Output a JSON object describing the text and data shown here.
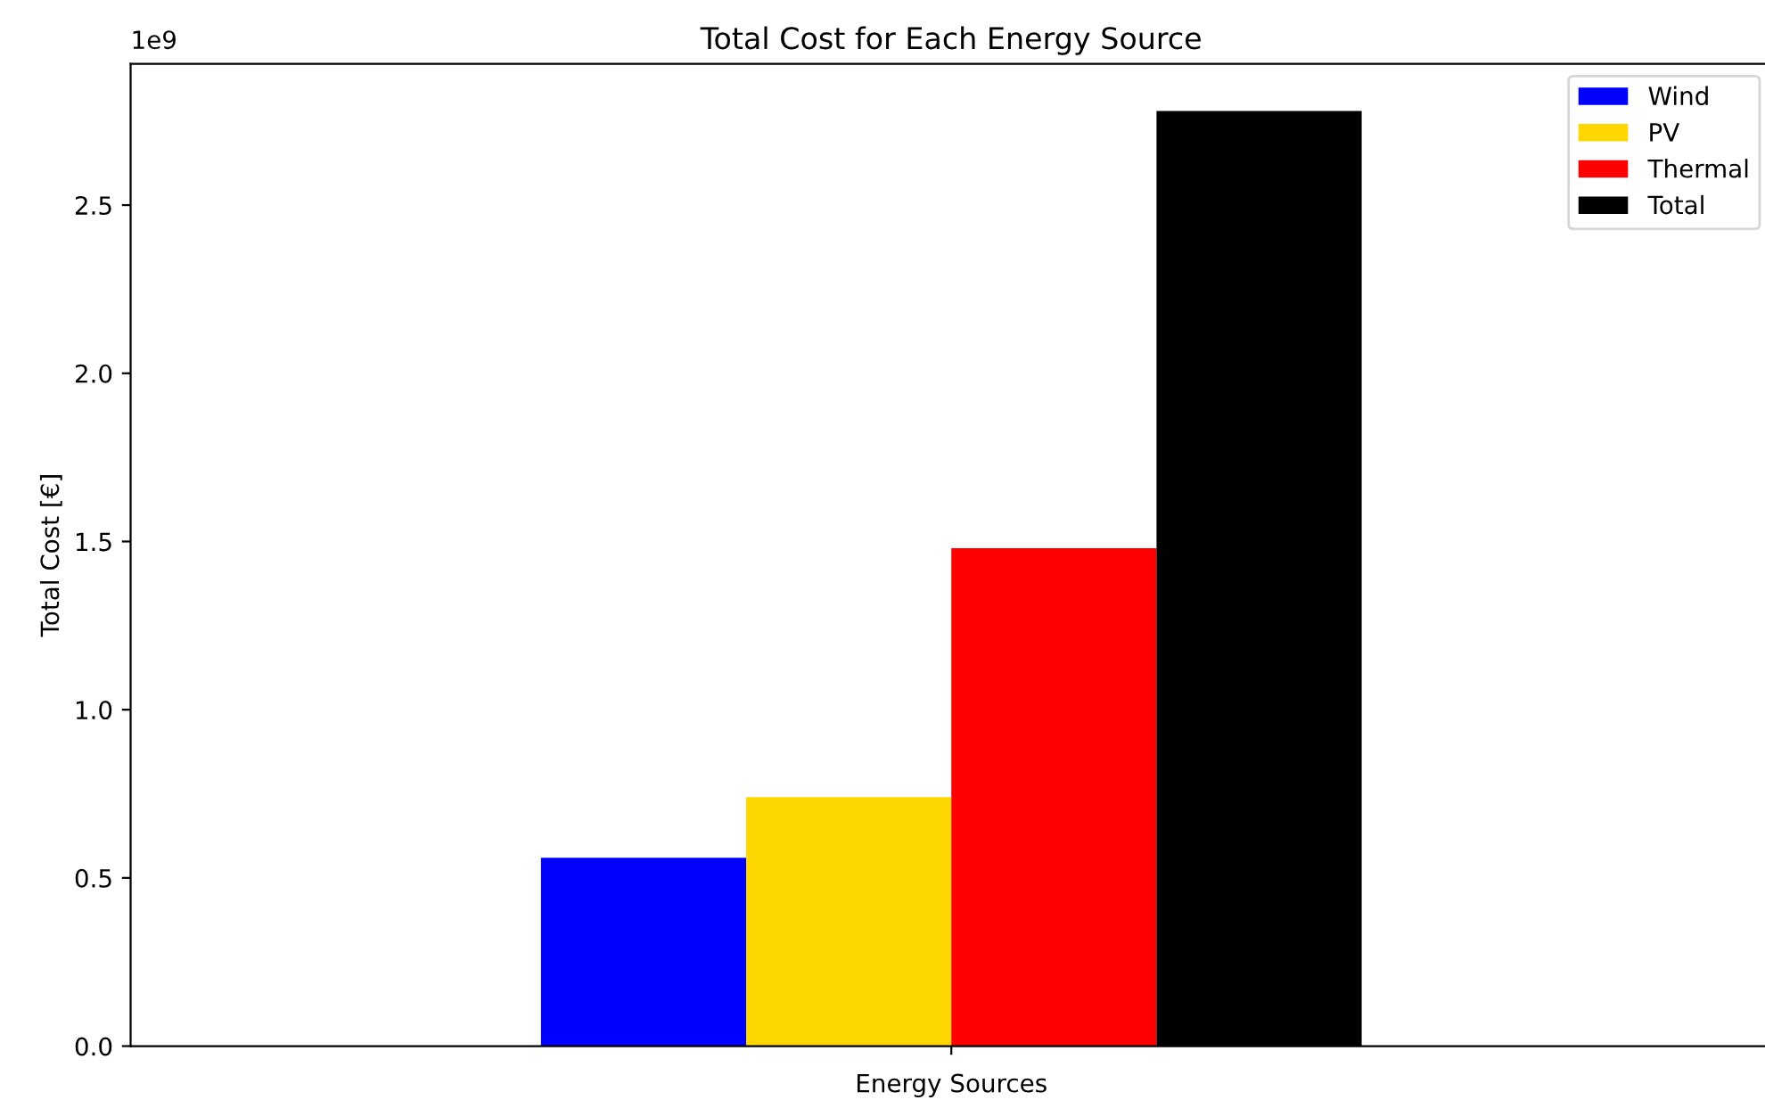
{
  "chart_data": {
    "type": "bar",
    "title": "Total Cost for Each Energy Source",
    "xlabel": "Energy Sources",
    "ylabel": "Total Cost [€]",
    "categories": [
      null
    ],
    "series": [
      {
        "name": "Wind",
        "color": "#0000ff",
        "values": [
          0.56
        ]
      },
      {
        "name": "PV",
        "color": "#ffd700",
        "values": [
          0.74
        ]
      },
      {
        "name": "Thermal",
        "color": "#ff0000",
        "values": [
          1.48
        ]
      },
      {
        "name": "Total",
        "color": "#000000",
        "values": [
          2.78
        ]
      }
    ],
    "ylim": [
      0,
      2.92
    ],
    "yticks": [
      {
        "value": 0,
        "label": "0.0"
      },
      {
        "value": 0.5,
        "label": "0.5"
      },
      {
        "value": 1,
        "label": "1.0"
      },
      {
        "value": 1.5,
        "label": "1.5"
      },
      {
        "value": 2,
        "label": "2.0"
      },
      {
        "value": 2.5,
        "label": "2.5"
      }
    ],
    "annotations": [
      "1e9"
    ],
    "legend": "top right",
    "grid": false
  }
}
